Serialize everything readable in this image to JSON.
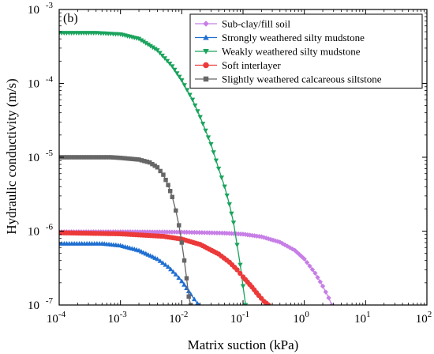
{
  "chart_data": {
    "type": "line",
    "panel_label": "(b)",
    "xlabel": "Matrix suction (kPa)",
    "ylabel": "Hydraulic conductivity (m/s)",
    "xscale": "log",
    "yscale": "log",
    "xlim": [
      0.0001,
      100
    ],
    "ylim": [
      1e-07,
      0.001
    ],
    "x_ticks": [
      {
        "value": 0.0001,
        "base": "10",
        "exp": "-4"
      },
      {
        "value": 0.001,
        "base": "10",
        "exp": "-3"
      },
      {
        "value": 0.01,
        "base": "10",
        "exp": "-2"
      },
      {
        "value": 0.1,
        "base": "10",
        "exp": "-1"
      },
      {
        "value": 1,
        "base": "10",
        "exp": "0"
      },
      {
        "value": 10,
        "base": "10",
        "exp": "1"
      },
      {
        "value": 100,
        "base": "10",
        "exp": "2"
      }
    ],
    "y_ticks": [
      {
        "value": 1e-07,
        "base": "10",
        "exp": "-7"
      },
      {
        "value": 1e-06,
        "base": "10",
        "exp": "-6"
      },
      {
        "value": 1e-05,
        "base": "10",
        "exp": "-5"
      },
      {
        "value": 0.0001,
        "base": "10",
        "exp": "-4"
      },
      {
        "value": 0.001,
        "base": "10",
        "exp": "-3"
      }
    ],
    "grid": false,
    "legend_position": "top-right",
    "series": [
      {
        "name": "Sub-clay/fill soil",
        "color": "#c77ee6",
        "marker": "diamond",
        "points": [
          [
            0.0001,
            9.8e-07
          ],
          [
            0.001,
            9.8e-07
          ],
          [
            0.01,
            9.7e-07
          ],
          [
            0.05,
            9.4e-07
          ],
          [
            0.1,
            9.1e-07
          ],
          [
            0.2,
            8.4e-07
          ],
          [
            0.4,
            7.1e-07
          ],
          [
            0.7,
            5.5e-07
          ],
          [
            1.0,
            4.2e-07
          ],
          [
            1.5,
            2.7e-07
          ],
          [
            2.0,
            1.8e-07
          ],
          [
            2.5,
            1.25e-07
          ],
          [
            2.8,
            1e-07
          ]
        ]
      },
      {
        "name": "Strongly weathered silty mudstone",
        "color": "#1f6fd1",
        "marker": "triangle-up",
        "points": [
          [
            0.0001,
            6.8e-07
          ],
          [
            0.0005,
            6.8e-07
          ],
          [
            0.001,
            6.4e-07
          ],
          [
            0.002,
            5.5e-07
          ],
          [
            0.004,
            4.2e-07
          ],
          [
            0.006,
            3.3e-07
          ],
          [
            0.008,
            2.6e-07
          ],
          [
            0.01,
            2.1e-07
          ],
          [
            0.012,
            1.7e-07
          ],
          [
            0.014,
            1.4e-07
          ],
          [
            0.016,
            1.2e-07
          ],
          [
            0.018,
            1.05e-07
          ],
          [
            0.019,
            1e-07
          ]
        ]
      },
      {
        "name": "Weakly weathered silty mudstone",
        "color": "#1aa35c",
        "marker": "triangle-down",
        "points": [
          [
            0.0001,
            0.00048
          ],
          [
            0.0004,
            0.00048
          ],
          [
            0.001,
            0.00046
          ],
          [
            0.002,
            0.0004
          ],
          [
            0.004,
            0.00028
          ],
          [
            0.007,
            0.00017
          ],
          [
            0.01,
            0.00011
          ],
          [
            0.015,
            6e-05
          ],
          [
            0.02,
            3.5e-05
          ],
          [
            0.03,
            1.5e-05
          ],
          [
            0.04,
            7e-06
          ],
          [
            0.05,
            4e-06
          ],
          [
            0.06,
            2.3e-06
          ],
          [
            0.07,
            1.3e-06
          ],
          [
            0.08,
            6.5e-07
          ],
          [
            0.09,
            3.5e-07
          ],
          [
            0.1,
            1.8e-07
          ],
          [
            0.11,
            1e-07
          ]
        ]
      },
      {
        "name": "Soft interlayer",
        "color": "#ec3a3a",
        "marker": "circle",
        "points": [
          [
            0.0001,
            9.5e-07
          ],
          [
            0.001,
            9.2e-07
          ],
          [
            0.005,
            8.5e-07
          ],
          [
            0.01,
            7.8e-07
          ],
          [
            0.02,
            6.6e-07
          ],
          [
            0.04,
            4.9e-07
          ],
          [
            0.06,
            3.8e-07
          ],
          [
            0.08,
            3e-07
          ],
          [
            0.1,
            2.4e-07
          ],
          [
            0.14,
            1.75e-07
          ],
          [
            0.18,
            1.35e-07
          ],
          [
            0.22,
            1.12e-07
          ],
          [
            0.26,
            1e-07
          ]
        ]
      },
      {
        "name": "Slightly weathered calcareous siltstone",
        "color": "#666666",
        "marker": "square",
        "points": [
          [
            0.0001,
            1e-05
          ],
          [
            0.0007,
            1e-05
          ],
          [
            0.001,
            9.8e-06
          ],
          [
            0.002,
            9.3e-06
          ],
          [
            0.003,
            8.5e-06
          ],
          [
            0.004,
            7.3e-06
          ],
          [
            0.005,
            5.8e-06
          ],
          [
            0.006,
            4.2e-06
          ],
          [
            0.007,
            2.9e-06
          ],
          [
            0.008,
            1.9e-06
          ],
          [
            0.009,
            1.2e-06
          ],
          [
            0.01,
            7e-07
          ],
          [
            0.011,
            4e-07
          ],
          [
            0.012,
            2.3e-07
          ],
          [
            0.013,
            1.3e-07
          ],
          [
            0.014,
            1e-07
          ]
        ]
      }
    ]
  }
}
